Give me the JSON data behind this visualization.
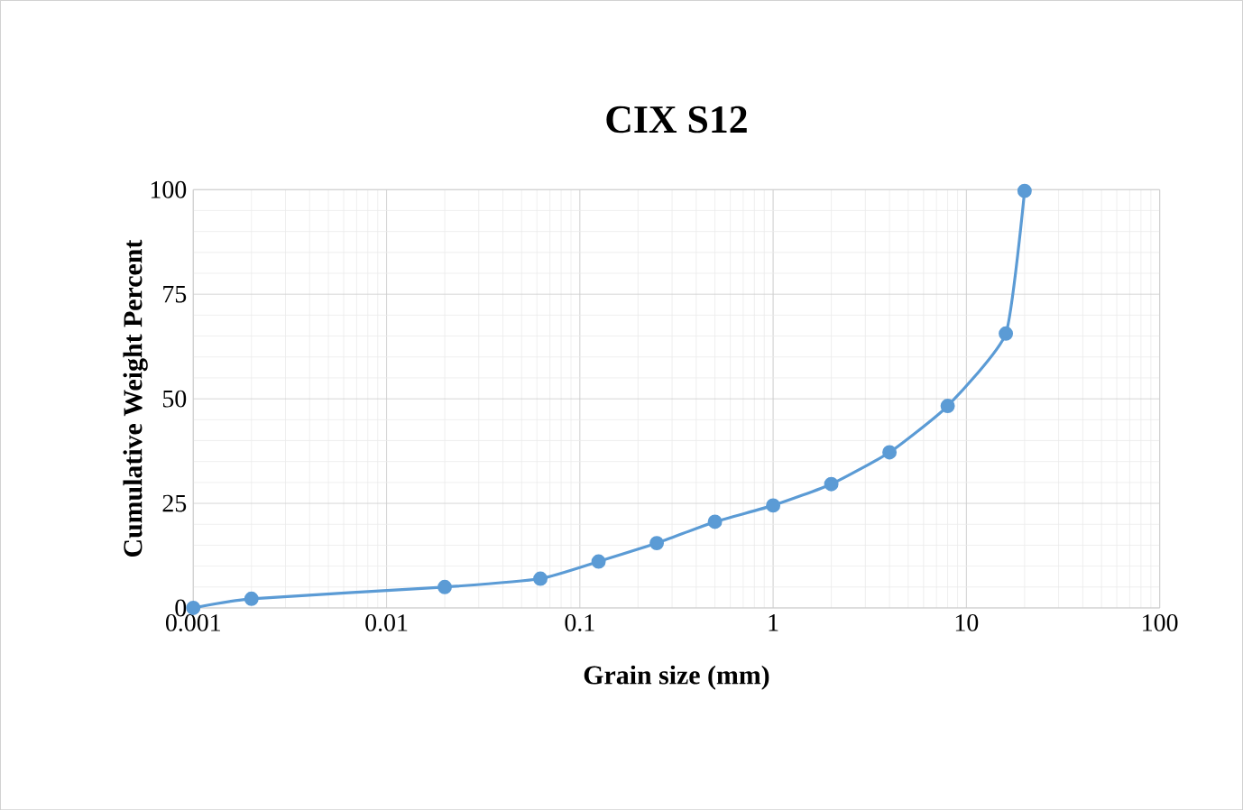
{
  "chart_data": {
    "type": "line",
    "title": "CIX S12",
    "xlabel": "Grain size (mm)",
    "ylabel": "Cumulative Weight Percent",
    "log": "x",
    "grid": true,
    "marker": "circle",
    "line_style": "solid",
    "x": [
      0.001,
      0.002,
      0.02,
      0.0625,
      0.125,
      0.25,
      0.5,
      1,
      2,
      4,
      8,
      16,
      20
    ],
    "series": [
      {
        "color": "#5b9bd5",
        "values": [
          0,
          2.2,
          5,
          7,
          11.1,
          15.5,
          20.6,
          24.5,
          29.6,
          37.2,
          48.3,
          65.6,
          99.7
        ]
      }
    ],
    "xlim": [
      0.001,
      100
    ],
    "xticks": [
      0.001,
      0.01,
      0.1,
      1,
      10,
      100
    ],
    "ylim": [
      0,
      100
    ],
    "yticks": [
      0,
      25,
      50,
      75,
      100
    ]
  }
}
